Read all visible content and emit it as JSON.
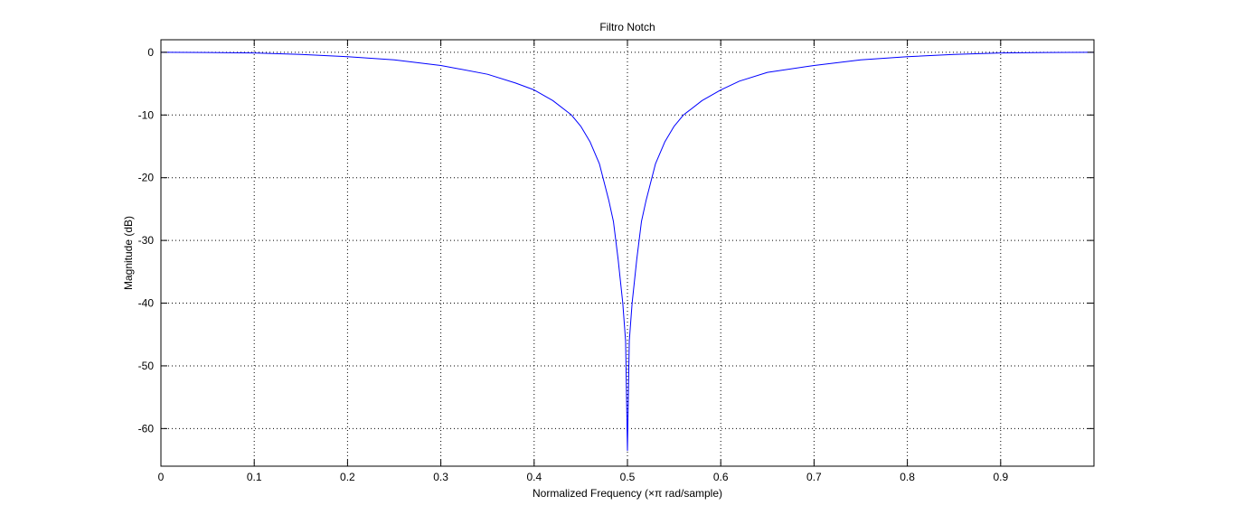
{
  "chart_data": {
    "type": "line",
    "title": "Filtro Notch",
    "xlabel": "Normalized Frequency (×π rad/sample)",
    "ylabel": "Magnitude (dB)",
    "xlim": [
      0,
      1
    ],
    "ylim": [
      -66,
      2
    ],
    "xticks": [
      0,
      0.1,
      0.2,
      0.3,
      0.4,
      0.5,
      0.6,
      0.7,
      0.8,
      0.9
    ],
    "xtick_labels": [
      "0",
      "0.1",
      "0.2",
      "0.3",
      "0.4",
      "0.5",
      "0.6",
      "0.7",
      "0.8",
      "0.9"
    ],
    "yticks": [
      0,
      -10,
      -20,
      -30,
      -40,
      -50,
      -60
    ],
    "ytick_labels": [
      "0",
      "-10",
      "-20",
      "-30",
      "-40",
      "-50",
      "-60"
    ],
    "grid": true,
    "line_color": "#0000ff",
    "series": [
      {
        "x": [
          0,
          0.05,
          0.1,
          0.15,
          0.2,
          0.25,
          0.3,
          0.35,
          0.38,
          0.4,
          0.42,
          0.44,
          0.45,
          0.46,
          0.47,
          0.48,
          0.485,
          0.49,
          0.495,
          0.498,
          0.5,
          0.502,
          0.505,
          0.51,
          0.515,
          0.52,
          0.53,
          0.54,
          0.55,
          0.56,
          0.58,
          0.6,
          0.62,
          0.65,
          0.7,
          0.75,
          0.8,
          0.85,
          0.9,
          0.95,
          1.0
        ],
        "y": [
          0,
          -0.03,
          -0.1,
          -0.35,
          -0.7,
          -1.2,
          -2.1,
          -3.5,
          -4.9,
          -6.0,
          -7.7,
          -10.0,
          -11.8,
          -14.3,
          -17.8,
          -23.6,
          -27.0,
          -33.0,
          -40.0,
          -46.0,
          -63.5,
          -46.0,
          -40.0,
          -33.0,
          -27.0,
          -23.6,
          -17.8,
          -14.3,
          -11.8,
          -10.0,
          -7.7,
          -6.0,
          -4.6,
          -3.2,
          -2.1,
          -1.2,
          -0.7,
          -0.35,
          -0.1,
          -0.03,
          0
        ]
      }
    ]
  }
}
